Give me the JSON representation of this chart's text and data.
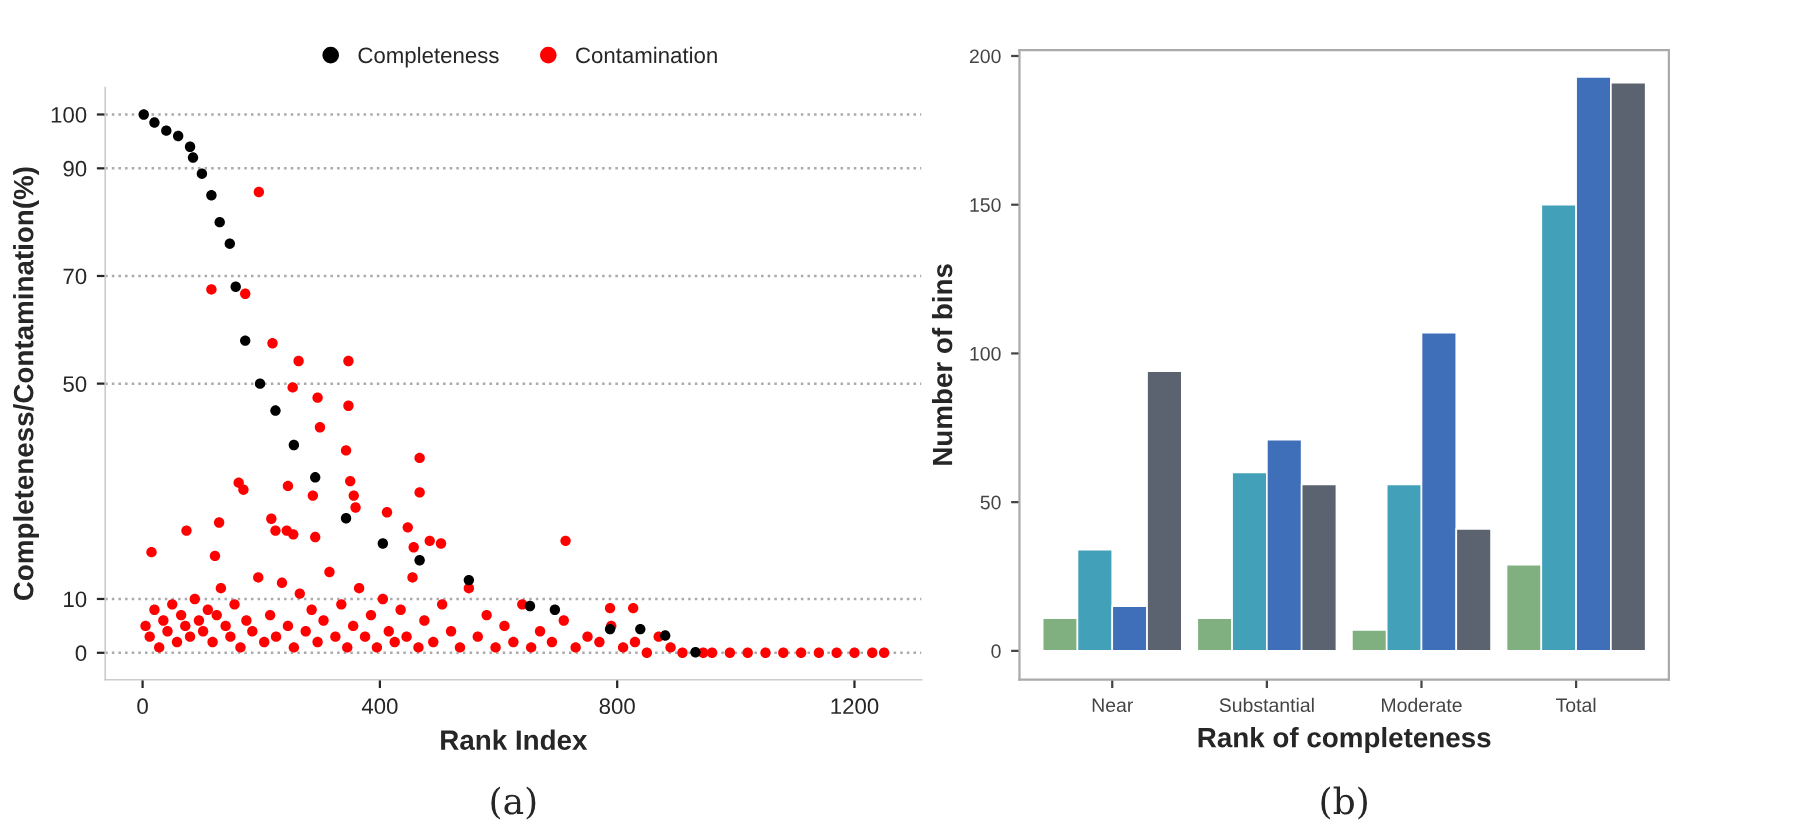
{
  "chart_data": [
    {
      "type": "scatter",
      "xlabel": "Rank Index",
      "ylabel": "Completeness/Contamination(%)",
      "xlim": [
        -63,
        1313
      ],
      "ylim": [
        -5,
        105
      ],
      "xticks": [
        0,
        400,
        800,
        1200
      ],
      "yticks": [
        0,
        10,
        50,
        70,
        90,
        100
      ],
      "grid": "y",
      "legend": "top",
      "marker": "circle",
      "annotations": [
        "(a)"
      ],
      "series": [
        {
          "name": "Completeness",
          "color": "#000000",
          "x": [
            2,
            20,
            40,
            60,
            80,
            85,
            100,
            116,
            130,
            147,
            157,
            173,
            198,
            224,
            255,
            291,
            343,
            405,
            467,
            550,
            653,
            695,
            788,
            839,
            881,
            932
          ],
          "values": [
            100,
            98.5,
            97,
            96,
            94,
            92,
            89,
            85,
            80,
            76,
            68,
            58,
            50,
            45,
            38.6,
            32.6,
            25,
            20.3,
            17.2,
            13.5,
            8.7,
            8,
            4.4,
            4.4,
            3.2,
            0.1
          ]
        },
        {
          "name": "Contamination",
          "color": "#ff0000",
          "x": [
            196,
            116,
            173,
            219,
            263,
            347,
            253,
            295,
            347,
            299,
            343,
            467,
            162,
            170,
            245,
            350,
            467,
            356,
            287,
            359,
            412,
            129,
            217,
            74,
            224,
            243,
            254,
            291,
            447,
            713,
            15,
            122,
            503,
            484,
            457,
            788,
            827,
            5,
            12,
            20,
            28,
            35,
            42,
            50,
            58,
            65,
            72,
            80,
            88,
            95,
            102,
            110,
            118,
            125,
            132,
            140,
            148,
            155,
            165,
            175,
            185,
            195,
            205,
            215,
            225,
            235,
            245,
            255,
            265,
            275,
            285,
            295,
            305,
            315,
            325,
            335,
            345,
            355,
            365,
            375,
            385,
            395,
            405,
            415,
            425,
            435,
            445,
            455,
            465,
            475,
            490,
            505,
            520,
            535,
            550,
            565,
            580,
            595,
            610,
            625,
            640,
            655,
            670,
            690,
            710,
            730,
            750,
            770,
            790,
            810,
            830,
            850,
            870,
            890,
            910,
            945,
            960,
            990,
            1020,
            1050,
            1080,
            1110,
            1140,
            1170,
            1200,
            1230,
            1250
          ],
          "values": [
            85.6,
            67.5,
            66.7,
            57.5,
            54.2,
            54.2,
            49.3,
            47.4,
            45.9,
            41.9,
            37.6,
            36.2,
            31.6,
            30.3,
            31,
            31.9,
            29.8,
            29.2,
            29.2,
            27,
            26.1,
            24.2,
            24.9,
            22.7,
            22.7,
            22.7,
            22,
            21.5,
            23.3,
            20.8,
            18.7,
            18,
            20.3,
            20.8,
            19.6,
            8.3,
            8.3,
            5,
            3,
            8,
            1,
            6,
            4,
            9,
            2,
            7,
            5,
            3,
            10,
            6,
            4,
            8,
            2,
            7,
            12,
            5,
            3,
            9,
            1,
            6,
            4,
            14,
            2,
            7,
            3,
            13,
            5,
            1,
            11,
            4,
            8,
            2,
            6,
            15,
            3,
            9,
            1,
            5,
            12,
            3,
            7,
            1,
            10,
            4,
            2,
            8,
            3,
            14,
            1,
            6,
            2,
            9,
            4,
            1,
            12,
            3,
            7,
            1,
            5,
            2,
            9,
            1,
            4,
            2,
            6,
            1,
            3,
            2,
            5,
            1,
            2,
            0,
            3,
            1,
            0,
            0,
            0,
            0,
            0,
            0,
            0,
            0,
            0,
            0,
            0,
            0,
            0
          ]
        }
      ]
    },
    {
      "type": "bar",
      "xlabel": "Rank of completeness",
      "ylabel": "Number of bins",
      "categories": [
        "Near",
        "Substantial",
        "Moderate",
        "Total"
      ],
      "ylim": [
        -9.7,
        202
      ],
      "yticks": [
        0,
        50,
        100,
        150,
        200
      ],
      "grid": false,
      "annotations": [
        "(b)"
      ],
      "series": [
        {
          "color": "#80b080",
          "values": [
            11,
            11,
            7,
            29
          ]
        },
        {
          "color": "#42a0b8",
          "values": [
            34,
            60,
            56,
            150
          ]
        },
        {
          "color": "#3f6fb8",
          "values": [
            15,
            71,
            107,
            193
          ]
        },
        {
          "color": "#5b6270",
          "values": [
            94,
            56,
            41,
            191
          ]
        }
      ]
    }
  ]
}
